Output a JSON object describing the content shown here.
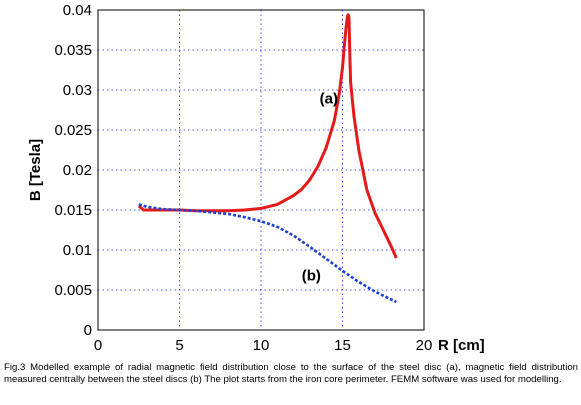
{
  "chart_data": {
    "type": "line",
    "xlabel": "R [cm]",
    "ylabel": "B [Tesla]",
    "xlim": [
      0,
      20
    ],
    "ylim": [
      0,
      0.04
    ],
    "xticks": [
      "0",
      "5",
      "10",
      "15",
      "20"
    ],
    "yticks": [
      "0",
      "0.005",
      "0.01",
      "0.015",
      "0.02",
      "0.025",
      "0.03",
      "0.035",
      "0.04"
    ],
    "grid": true,
    "series": [
      {
        "name": "(a)",
        "color": "#e31a1a",
        "style": "solid",
        "x": [
          2.5,
          2.8,
          3.5,
          5,
          6,
          7,
          8,
          9,
          10,
          11,
          12,
          12.5,
          13,
          13.5,
          14,
          14.5,
          14.8,
          15.0,
          15.1,
          15.2,
          15.3,
          15.35,
          15.4,
          15.45,
          15.5,
          15.7,
          16.0,
          16.5,
          17.0,
          17.5,
          18.0,
          18.3
        ],
        "y": [
          0.0155,
          0.015,
          0.015,
          0.015,
          0.0149,
          0.0149,
          0.0149,
          0.015,
          0.0152,
          0.0157,
          0.0168,
          0.0176,
          0.0188,
          0.0205,
          0.0228,
          0.0262,
          0.0295,
          0.0328,
          0.0352,
          0.0375,
          0.0392,
          0.0394,
          0.039,
          0.0345,
          0.031,
          0.0268,
          0.0225,
          0.0175,
          0.0146,
          0.0125,
          0.0104,
          0.009
        ]
      },
      {
        "name": "(b)",
        "color": "#1a3fd6",
        "style": "dotted",
        "x": [
          2.5,
          3,
          4,
          5,
          6,
          7,
          8,
          9,
          10,
          11,
          12,
          13,
          14,
          15,
          16,
          17,
          18,
          18.3
        ],
        "y": [
          0.0157,
          0.0154,
          0.0151,
          0.015,
          0.0149,
          0.0147,
          0.0145,
          0.0141,
          0.0136,
          0.0129,
          0.0118,
          0.0104,
          0.0089,
          0.0074,
          0.006,
          0.0048,
          0.0038,
          0.0035
        ]
      }
    ],
    "annotations": [
      {
        "text": "(a)",
        "x": 13.6,
        "y": 0.0283
      },
      {
        "text": "(b)",
        "x": 12.5,
        "y": 0.0062
      }
    ]
  },
  "caption": "Fig.3   Modelled example of radial magnetic field distribution close to the surface of the steel disc (a), magnetic field distribution measured centrally between the steel discs (b) The plot starts from the iron core perimeter. FEMM software was used for modelling."
}
